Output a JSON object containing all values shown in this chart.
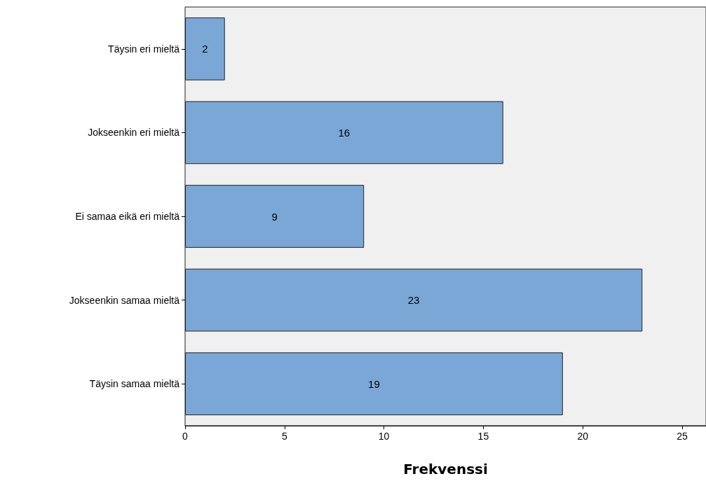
{
  "chart_data": {
    "type": "bar",
    "orientation": "horizontal",
    "categories": [
      "Täysin eri mieltä",
      "Jokseenkin eri mieltä",
      "Ei samaa eikä eri mieltä",
      "Jokseenkin samaa mieltä",
      "Täysin samaa mieltä"
    ],
    "values": [
      2,
      16,
      9,
      23,
      19
    ],
    "color": "#7ba7d7",
    "xlabel": "Frekvenssi",
    "xlim": [
      0,
      26.2
    ],
    "xticks": [
      0,
      5,
      10,
      15,
      20,
      25
    ],
    "data_labels": true,
    "grid": false
  }
}
